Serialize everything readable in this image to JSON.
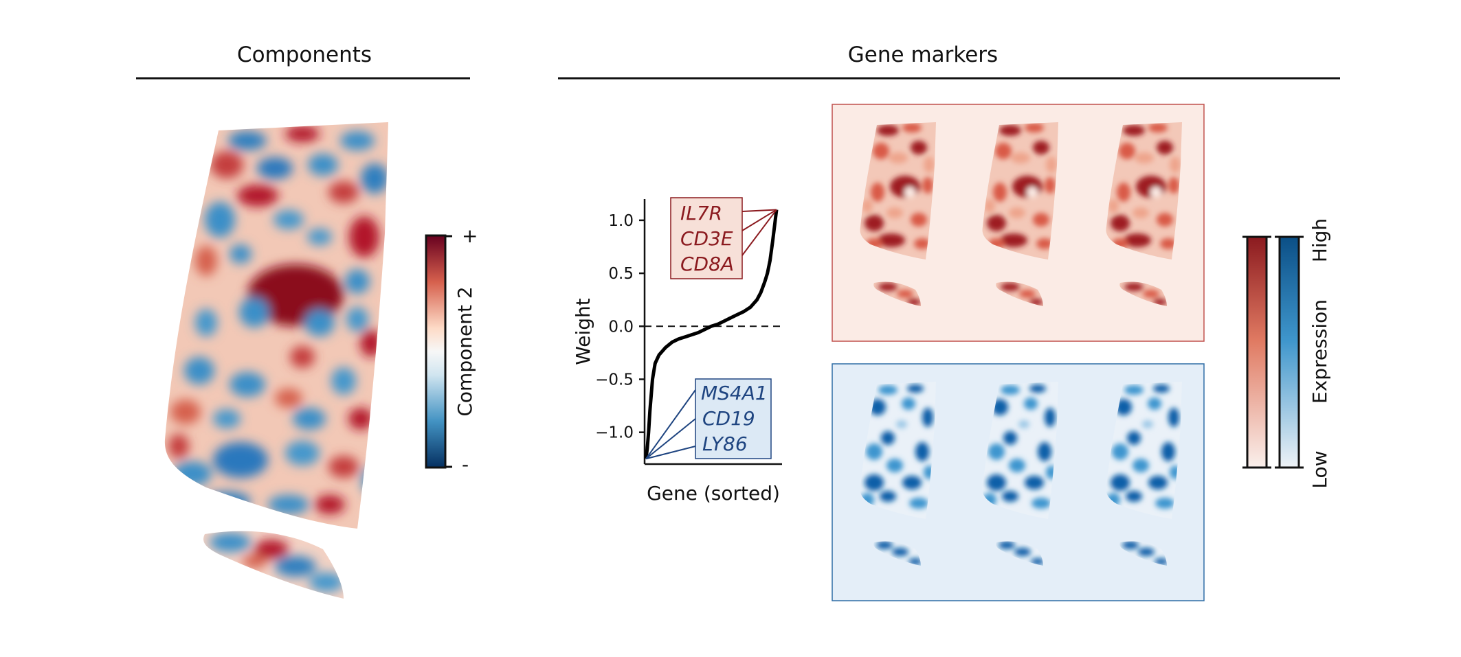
{
  "sections": {
    "left_title": "Components",
    "right_title": "Gene markers"
  },
  "component_colorbar": {
    "label": "Component 2",
    "top": "+",
    "bottom": "-"
  },
  "expression_colorbar": {
    "label": "Expression",
    "high": "High",
    "low": "Low"
  },
  "chart_data": {
    "type": "line",
    "xlabel": "Gene (sorted)",
    "ylabel": "Weight",
    "ylim": [
      -1.3,
      1.2
    ],
    "yticks": [
      1.0,
      0.5,
      0.0,
      -0.5,
      -1.0
    ],
    "ytick_labels": [
      "1.0",
      "0.5",
      "0.0",
      "−0.5",
      "−1.0"
    ],
    "reference_line_y": 0.0,
    "series": [
      {
        "x": [
          0,
          0.01,
          0.02,
          0.03,
          0.05,
          0.07,
          0.1,
          0.15,
          0.2,
          0.25,
          0.3,
          0.35,
          0.4,
          0.45,
          0.5,
          0.55,
          0.6,
          0.65,
          0.7,
          0.75,
          0.8,
          0.85,
          0.88,
          0.91,
          0.93,
          0.95,
          0.97,
          0.99,
          1.0
        ],
        "values": [
          -1.25,
          -1.15,
          -1.0,
          -0.8,
          -0.5,
          -0.35,
          -0.27,
          -0.2,
          -0.15,
          -0.12,
          -0.1,
          -0.08,
          -0.06,
          -0.03,
          0.0,
          0.02,
          0.05,
          0.08,
          0.11,
          0.14,
          0.18,
          0.25,
          0.32,
          0.42,
          0.5,
          0.62,
          0.8,
          1.0,
          1.1
        ]
      }
    ],
    "positive_genes": [
      "IL7R",
      "CD3E",
      "CD8A"
    ],
    "negative_genes": [
      "MS4A1",
      "CD19",
      "LY86"
    ]
  },
  "colors": {
    "red_dark": "#67001f",
    "red_mid": "#d6604d",
    "red_light": "#fbe6dc",
    "blue_dark": "#053061",
    "blue_mid": "#2166ac",
    "blue_light": "#d6e8f4",
    "white": "#f7f7f7"
  }
}
